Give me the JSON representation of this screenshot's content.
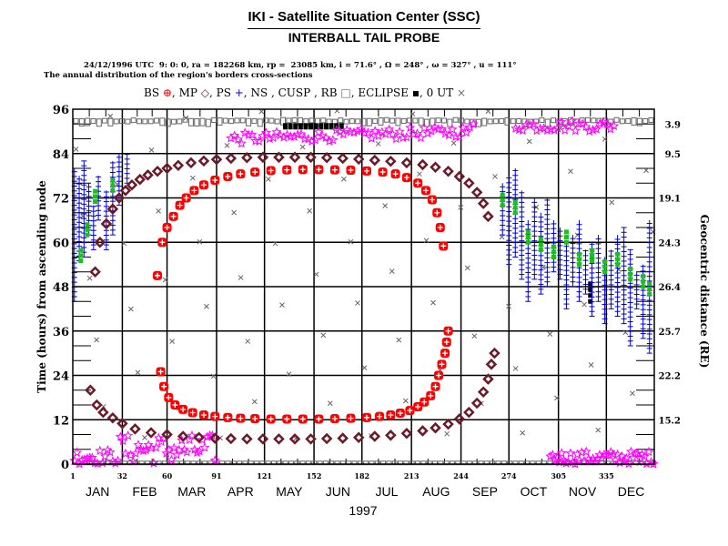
{
  "header": {
    "title": "IKI - Satellite Situation Center (SSC)",
    "subtitle": "INTERBALL TAIL PROBE"
  },
  "params_line": "24/12/1996 UTC  9: 0: 0, ra = 182268 km, rp =  23085 km, i = 71.6° , Ω = 248° , ω = 327° , u = 111°",
  "description": "The annual distribution of the region's borders cross-sections",
  "legend": [
    {
      "label": "BS",
      "symbol": "⊕",
      "color": "#ff0000",
      "name": "bow-shock"
    },
    {
      "label": "MP",
      "symbol": "◇",
      "color": "#6b1a2a",
      "name": "magnetopause"
    },
    {
      "label": "PS",
      "symbol": "+",
      "color": "#0000cc",
      "name": "plasma-sheet"
    },
    {
      "label": "NS",
      "symbol": "",
      "color": "#22bb22",
      "name": "neutral-sheet"
    },
    {
      "label": "CUSP",
      "symbol": "",
      "color": "#ff00ff",
      "name": "cusp"
    },
    {
      "label": "RB",
      "symbol": "□",
      "color": "#666666",
      "name": "radiation-belt"
    },
    {
      "label": "ECLIPSE",
      "symbol": "▪",
      "color": "#000000",
      "name": "eclipse"
    },
    {
      "label": "0 UT",
      "symbol": "×",
      "color": "#666666",
      "name": "zero-ut"
    }
  ],
  "chart_data": {
    "type": "scatter",
    "title": "The annual distribution of the region's borders cross-sections",
    "xlabel": "1997",
    "ylabel": "Time (hours) from ascending node",
    "y2label": "Geocentric distance (RE)",
    "xlim": [
      1,
      365
    ],
    "ylim": [
      0,
      96
    ],
    "grid": true,
    "x_day_ticks": [
      1,
      32,
      60,
      91,
      121,
      152,
      182,
      213,
      244,
      274,
      305,
      335
    ],
    "month_labels": [
      "JAN",
      "FEB",
      "MAR",
      "APR",
      "MAY",
      "JUN",
      "JUL",
      "AUG",
      "SEP",
      "OCT",
      "NOV",
      "DEC"
    ],
    "y_ticks": [
      0,
      12,
      24,
      36,
      48,
      60,
      72,
      84,
      96
    ],
    "y2_ticks": [
      {
        "hour": 92,
        "label": "3.9"
      },
      {
        "hour": 84,
        "label": "9.5"
      },
      {
        "hour": 72,
        "label": "19.1"
      },
      {
        "hour": 60,
        "label": "24.3"
      },
      {
        "hour": 48,
        "label": "26.4"
      },
      {
        "hour": 36,
        "label": "25.7"
      },
      {
        "hour": 24,
        "label": "22.2"
      },
      {
        "hour": 12,
        "label": "15.2"
      }
    ],
    "series": [
      {
        "name": "BS",
        "note": "outer loop (entry ~day 55 at 50h rising to ~80h mid-year; exit ~day 233 at 59h)",
        "points": [
          [
            54,
            51
          ],
          [
            57,
            60
          ],
          [
            60,
            64
          ],
          [
            64,
            67
          ],
          [
            68,
            70
          ],
          [
            72,
            72
          ],
          [
            77,
            74
          ],
          [
            83,
            75.5
          ],
          [
            90,
            76.8
          ],
          [
            98,
            77.8
          ],
          [
            106,
            78.5
          ],
          [
            115,
            79
          ],
          [
            125,
            79.4
          ],
          [
            135,
            79.6
          ],
          [
            145,
            79.7
          ],
          [
            155,
            79.7
          ],
          [
            165,
            79.6
          ],
          [
            175,
            79.5
          ],
          [
            185,
            79.3
          ],
          [
            195,
            79
          ],
          [
            203,
            78.5
          ],
          [
            210,
            77.5
          ],
          [
            217,
            76
          ],
          [
            222,
            74
          ],
          [
            226,
            71.5
          ],
          [
            229,
            68
          ],
          [
            231,
            64
          ],
          [
            233,
            59
          ],
          [
            56,
            25
          ],
          [
            58,
            21
          ],
          [
            61,
            18
          ],
          [
            65,
            16
          ],
          [
            70,
            14.8
          ],
          [
            76,
            13.9
          ],
          [
            83,
            13.3
          ],
          [
            90,
            12.9
          ],
          [
            98,
            12.6
          ],
          [
            106,
            12.4
          ],
          [
            115,
            12.3
          ],
          [
            125,
            12.2
          ],
          [
            135,
            12.2
          ],
          [
            145,
            12.2
          ],
          [
            155,
            12.2
          ],
          [
            165,
            12.3
          ],
          [
            175,
            12.4
          ],
          [
            185,
            12.6
          ],
          [
            193,
            12.9
          ],
          [
            200,
            13.3
          ],
          [
            206,
            13.8
          ],
          [
            212,
            14.5
          ],
          [
            217,
            15.5
          ],
          [
            221,
            16.8
          ],
          [
            225,
            18.5
          ],
          [
            228,
            21
          ],
          [
            230,
            24
          ],
          [
            232,
            27
          ],
          [
            234,
            30
          ],
          [
            235,
            33
          ],
          [
            236,
            36
          ]
        ]
      },
      {
        "name": "MP",
        "note": "inner-loop diamonds",
        "points": [
          [
            15,
            52
          ],
          [
            18,
            60
          ],
          [
            22,
            65
          ],
          [
            26,
            69
          ],
          [
            30,
            72
          ],
          [
            34,
            74
          ],
          [
            38,
            75.5
          ],
          [
            43,
            77
          ],
          [
            48,
            78.2
          ],
          [
            54,
            79.2
          ],
          [
            60,
            80
          ],
          [
            67,
            80.8
          ],
          [
            75,
            81.5
          ],
          [
            83,
            82
          ],
          [
            91,
            82.4
          ],
          [
            100,
            82.7
          ],
          [
            110,
            82.9
          ],
          [
            120,
            83
          ],
          [
            130,
            83
          ],
          [
            140,
            83
          ],
          [
            150,
            83
          ],
          [
            160,
            82.9
          ],
          [
            170,
            82.7
          ],
          [
            180,
            82.5
          ],
          [
            190,
            82.2
          ],
          [
            200,
            81.9
          ],
          [
            210,
            81.5
          ],
          [
            220,
            81
          ],
          [
            228,
            80.3
          ],
          [
            236,
            79.2
          ],
          [
            243,
            77.8
          ],
          [
            249,
            76
          ],
          [
            254,
            73.5
          ],
          [
            258,
            70.5
          ],
          [
            261,
            67
          ],
          [
            12,
            20
          ],
          [
            16,
            16
          ],
          [
            20,
            14
          ],
          [
            26,
            12.5
          ],
          [
            32,
            11
          ],
          [
            40,
            9.5
          ],
          [
            50,
            8.5
          ],
          [
            60,
            8
          ],
          [
            70,
            7.5
          ],
          [
            80,
            7.2
          ],
          [
            90,
            7
          ],
          [
            100,
            6.9
          ],
          [
            110,
            6.8
          ],
          [
            120,
            6.8
          ],
          [
            130,
            6.8
          ],
          [
            140,
            6.8
          ],
          [
            150,
            6.8
          ],
          [
            160,
            6.9
          ],
          [
            170,
            7
          ],
          [
            180,
            7.2
          ],
          [
            190,
            7.5
          ],
          [
            200,
            7.8
          ],
          [
            210,
            8.3
          ],
          [
            220,
            9
          ],
          [
            228,
            9.8
          ],
          [
            236,
            10.8
          ],
          [
            243,
            12.2
          ],
          [
            249,
            14
          ],
          [
            254,
            16.5
          ],
          [
            258,
            19.5
          ],
          [
            261,
            23
          ],
          [
            263,
            27
          ],
          [
            265,
            30
          ]
        ]
      }
    ]
  },
  "colors": {
    "bs": "#ff0000",
    "mp": "#6b1a2a",
    "ps": "#0000cc",
    "ns": "#22bb22",
    "cusp": "#ff00ff",
    "rb": "#666666",
    "eclipse": "#000000",
    "ut": "#666666"
  }
}
